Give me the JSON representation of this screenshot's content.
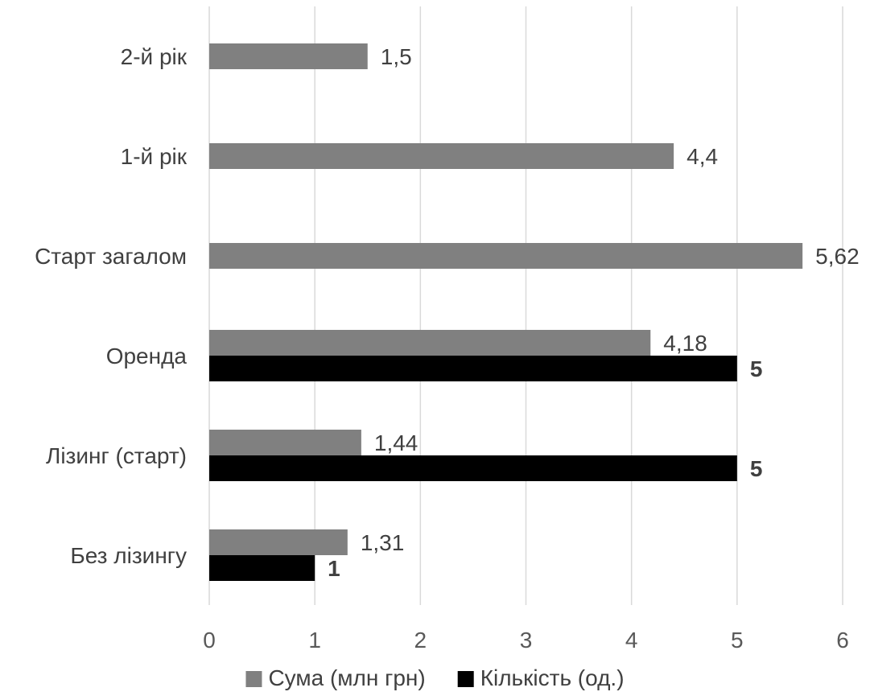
{
  "chart_data": {
    "type": "bar",
    "orientation": "horizontal",
    "categories": [
      "Без лізингу",
      "Лізинг (старт)",
      "Оренда",
      "Старт загалом",
      "1-й рік",
      "2-й рік"
    ],
    "category_order": "bottom-to-top",
    "x_ticks": [
      "0",
      "1",
      "2",
      "3",
      "4",
      "5",
      "6"
    ],
    "xlim": [
      0,
      6
    ],
    "grid": "vertical",
    "legend_position": "bottom",
    "series": [
      {
        "name": "Сума (млн грн)",
        "color": "#808080",
        "values": [
          1.31,
          1.44,
          4.18,
          5.62,
          4.4,
          1.5
        ],
        "labels": [
          "1,31",
          "1,44",
          "4,18",
          "5,62",
          "4,4",
          "1,5"
        ],
        "label_weight": "normal"
      },
      {
        "name": "Кількість (од.)",
        "color": "#000000",
        "values": [
          1,
          5,
          5,
          null,
          null,
          null
        ],
        "labels": [
          "1",
          "5",
          "5",
          null,
          null,
          null
        ],
        "label_weight": "bold"
      }
    ]
  }
}
